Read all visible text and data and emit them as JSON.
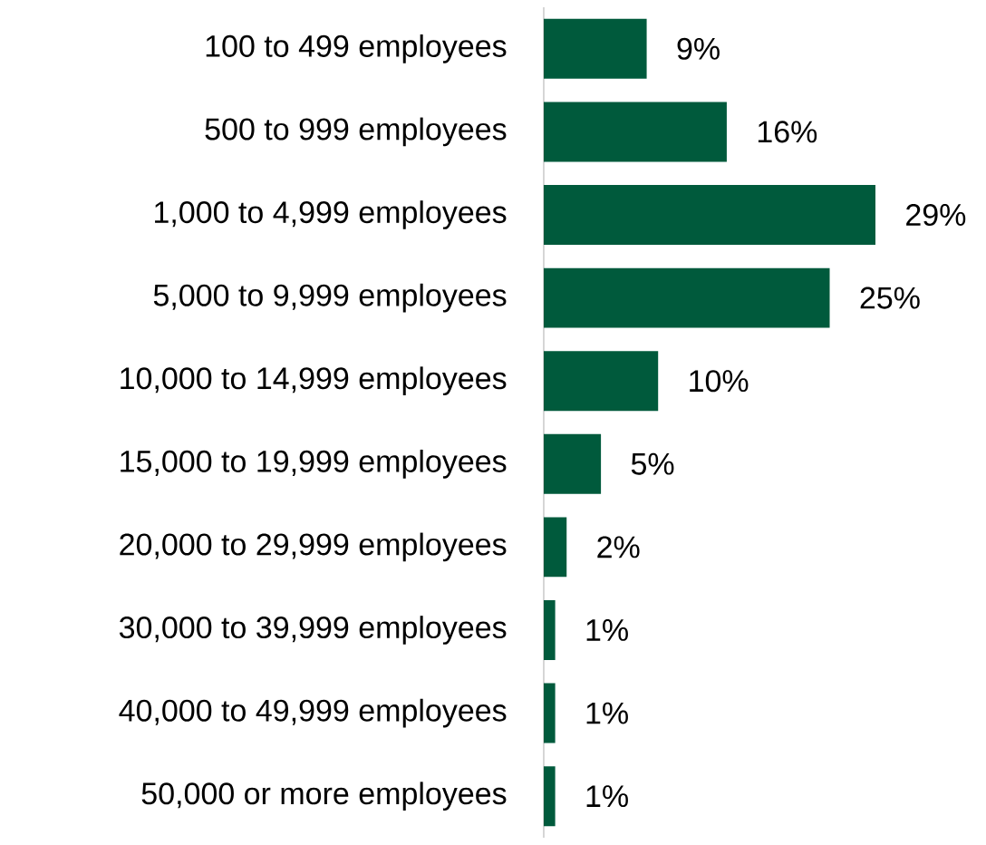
{
  "chart_data": {
    "type": "bar",
    "orientation": "horizontal",
    "categories": [
      "100 to 499 employees",
      "500 to 999 employees",
      "1,000 to 4,999 employees",
      "5,000 to 9,999 employees",
      "10,000 to 14,999 employees",
      "15,000 to 19,999 employees",
      "20,000 to 29,999 employees",
      "30,000 to 39,999 employees",
      "40,000 to 49,999 employees",
      "50,000 or more employees"
    ],
    "values": [
      9,
      16,
      29,
      25,
      10,
      5,
      2,
      1,
      1,
      1
    ],
    "value_labels": [
      "9%",
      "16%",
      "29%",
      "25%",
      "10%",
      "5%",
      "2%",
      "1%",
      "1%",
      "1%"
    ],
    "color": "#005a3c"
  }
}
